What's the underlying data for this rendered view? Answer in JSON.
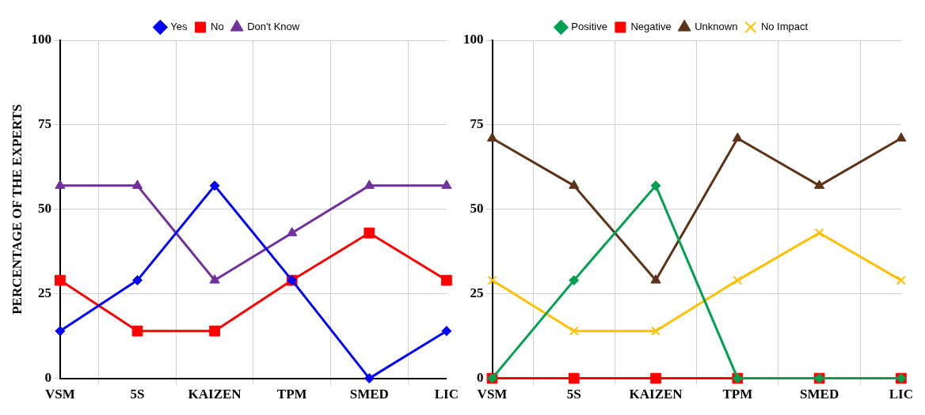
{
  "chart_data": [
    {
      "type": "line",
      "ylabel": "PERCENTAGE OF THE EXPERTS",
      "categories": [
        "VSM",
        "5S",
        "KAIZEN",
        "TPM",
        "SMED",
        "LIC"
      ],
      "ylim": [
        0,
        100
      ],
      "yticks": [
        0,
        25,
        50,
        75,
        100
      ],
      "grid": true,
      "legend": "top",
      "series": [
        {
          "name": "Yes",
          "color": "#0000ff",
          "marker": "diamond",
          "values": [
            14,
            29,
            57,
            29,
            0,
            14
          ]
        },
        {
          "name": "No",
          "color": "#ff0000",
          "marker": "square",
          "values": [
            29,
            14,
            14,
            29,
            43,
            29
          ]
        },
        {
          "name": "Don't Know",
          "color": "#7030a0",
          "marker": "triangle",
          "values": [
            57,
            57,
            29,
            43,
            57,
            57
          ]
        }
      ]
    },
    {
      "type": "line",
      "categories": [
        "VSM",
        "5S",
        "KAIZEN",
        "TPM",
        "SMED",
        "LIC"
      ],
      "ylim": [
        0,
        100
      ],
      "yticks": [
        0,
        25,
        50,
        75,
        100
      ],
      "grid": true,
      "legend": "top",
      "series": [
        {
          "name": "Positive",
          "color": "#00a050",
          "marker": "diamond",
          "values": [
            0,
            29,
            57,
            0,
            0,
            0
          ]
        },
        {
          "name": "Negative",
          "color": "#ff0000",
          "marker": "square",
          "values": [
            0,
            0,
            0,
            0,
            0,
            0
          ]
        },
        {
          "name": "Unknown",
          "color": "#5c3317",
          "marker": "triangle",
          "values": [
            71,
            57,
            29,
            71,
            57,
            71
          ]
        },
        {
          "name": "No Impact",
          "color": "#ffc000",
          "marker": "cross",
          "values": [
            29,
            14,
            14,
            29,
            43,
            29
          ]
        }
      ]
    }
  ]
}
